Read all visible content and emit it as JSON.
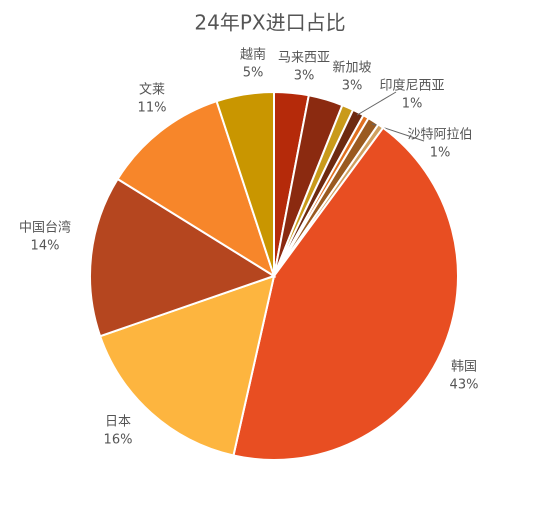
{
  "chart_data": {
    "type": "pie",
    "title": "24年PX进口占比",
    "categories": [
      "马来西亚",
      "新加坡",
      null,
      "印度尼西亚",
      null,
      "沙特阿拉伯",
      null,
      "韩国",
      "日本",
      "中国台湾",
      "文莱",
      "越南"
    ],
    "values": [
      3,
      3,
      1,
      1,
      0.5,
      1,
      0.5,
      43,
      16,
      14,
      11,
      5
    ],
    "value_labels": [
      "3%",
      "3%",
      null,
      "1%",
      null,
      "1%",
      null,
      "43%",
      "16%",
      "14%",
      "11%",
      "5%"
    ],
    "colors": [
      "#b52a0a",
      "#8b2a10",
      "#c99a1a",
      "#6e2a10",
      "#e07020",
      "#9a5a20",
      "#d0a060",
      "#e84e22",
      "#fdb53f",
      "#b5461f",
      "#f7862a",
      "#c99600"
    ]
  }
}
